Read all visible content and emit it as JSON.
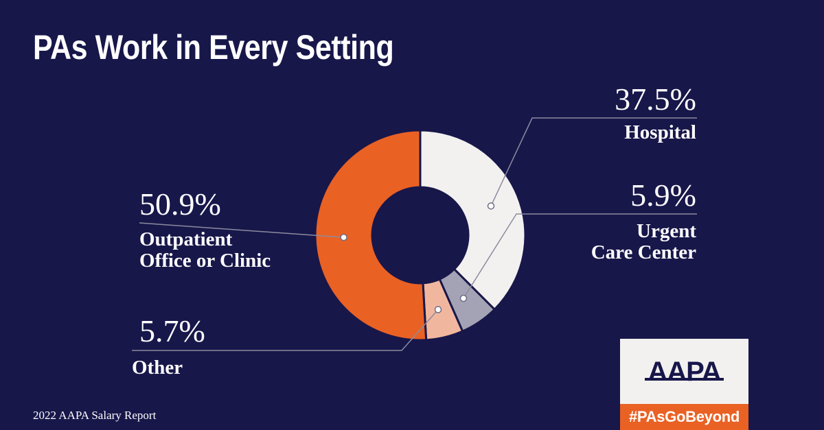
{
  "title": "PAs Work in Every Setting",
  "footer": "2022 AAPA Salary Report",
  "badge": {
    "logo": "AAPA",
    "hashtag": "#PAsGoBeyond"
  },
  "colors": {
    "background": "#18174a",
    "outpatient": "#ea6124",
    "hospital": "#f2f1ef",
    "urgent": "#a4a3b5",
    "other": "#f1b79e",
    "leader": "#8c8ba0"
  },
  "chart_data": {
    "type": "pie",
    "title": "PAs Work in Every Setting",
    "slices": [
      {
        "label": "Hospital",
        "value": 37.5,
        "display": "37.5%"
      },
      {
        "label": "Urgent Care Center",
        "value": 5.9,
        "display": "5.9%"
      },
      {
        "label": "Other",
        "value": 5.7,
        "display": "5.7%"
      },
      {
        "label": "Outpatient Office or Clinic",
        "value": 50.9,
        "display": "50.9%"
      }
    ]
  },
  "labels": {
    "hospital": {
      "pct": "37.5%",
      "name": "Hospital"
    },
    "urgent": {
      "pct": "5.9%",
      "line1": "Urgent",
      "line2": "Care Center"
    },
    "outpatient": {
      "pct": "50.9%",
      "line1": "Outpatient",
      "line2": "Office or Clinic"
    },
    "other": {
      "pct": "5.7%",
      "name": "Other"
    }
  }
}
